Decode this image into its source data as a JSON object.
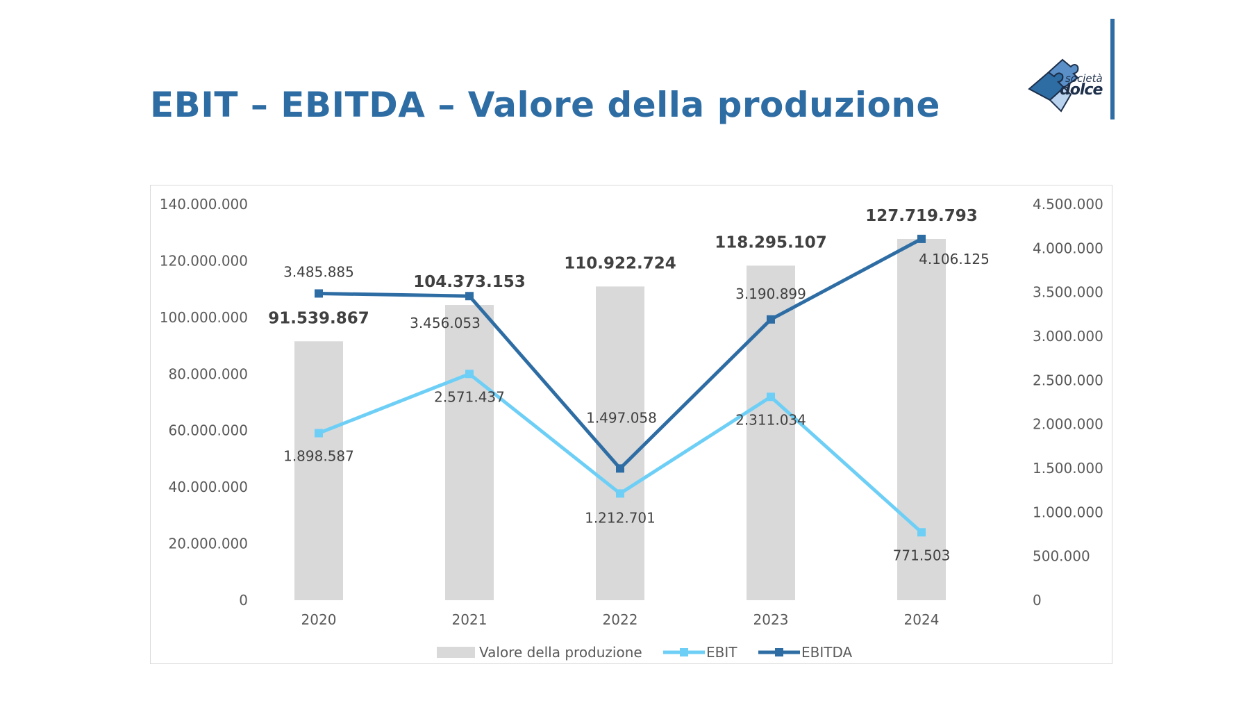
{
  "title": "EBIT – EBITDA – Valore della produzione",
  "logo": {
    "line1": "società",
    "line2": "dolce"
  },
  "colors": {
    "title": "#2e6da4",
    "bar": "#d9d9d9",
    "ebit": "#6ecff6",
    "ebitda": "#2e6da4",
    "accent": "#2e6da4"
  },
  "chart_data": {
    "type": "bar",
    "categories": [
      "2020",
      "2021",
      "2022",
      "2023",
      "2024"
    ],
    "series": [
      {
        "name": "Valore della produzione",
        "kind": "bar",
        "axis": "left",
        "values": [
          91539867,
          104373153,
          110922724,
          118295107,
          127719793
        ],
        "labels": [
          "91.539.867",
          "104.373.153",
          "110.922.724",
          "118.295.107",
          "127.719.793"
        ]
      },
      {
        "name": "EBIT",
        "kind": "line",
        "axis": "right",
        "values": [
          1898587,
          2571437,
          1212701,
          2311034,
          771503
        ],
        "labels": [
          "1.898.587",
          "2.571.437",
          "1.212.701",
          "2.311.034",
          "771.503"
        ]
      },
      {
        "name": "EBITDA",
        "kind": "line",
        "axis": "right",
        "values": [
          3485885,
          3456053,
          1497058,
          3190899,
          4106125
        ],
        "labels": [
          "3.485.885",
          "3.456.053",
          "1.497.058",
          "3.190.899",
          "4.106.125"
        ]
      }
    ],
    "y_left": {
      "ylim": [
        0,
        140000000
      ],
      "ticks": [
        "0",
        "20.000.000",
        "40.000.000",
        "60.000.000",
        "80.000.000",
        "100.000.000",
        "120.000.000",
        "140.000.000"
      ]
    },
    "y_right": {
      "ylim": [
        0,
        4500000
      ],
      "ticks": [
        "0",
        "500.000",
        "1.000.000",
        "1.500.000",
        "2.000.000",
        "2.500.000",
        "3.000.000",
        "3.500.000",
        "4.000.000",
        "4.500.000"
      ]
    },
    "legend": "bottom",
    "grid": false
  }
}
